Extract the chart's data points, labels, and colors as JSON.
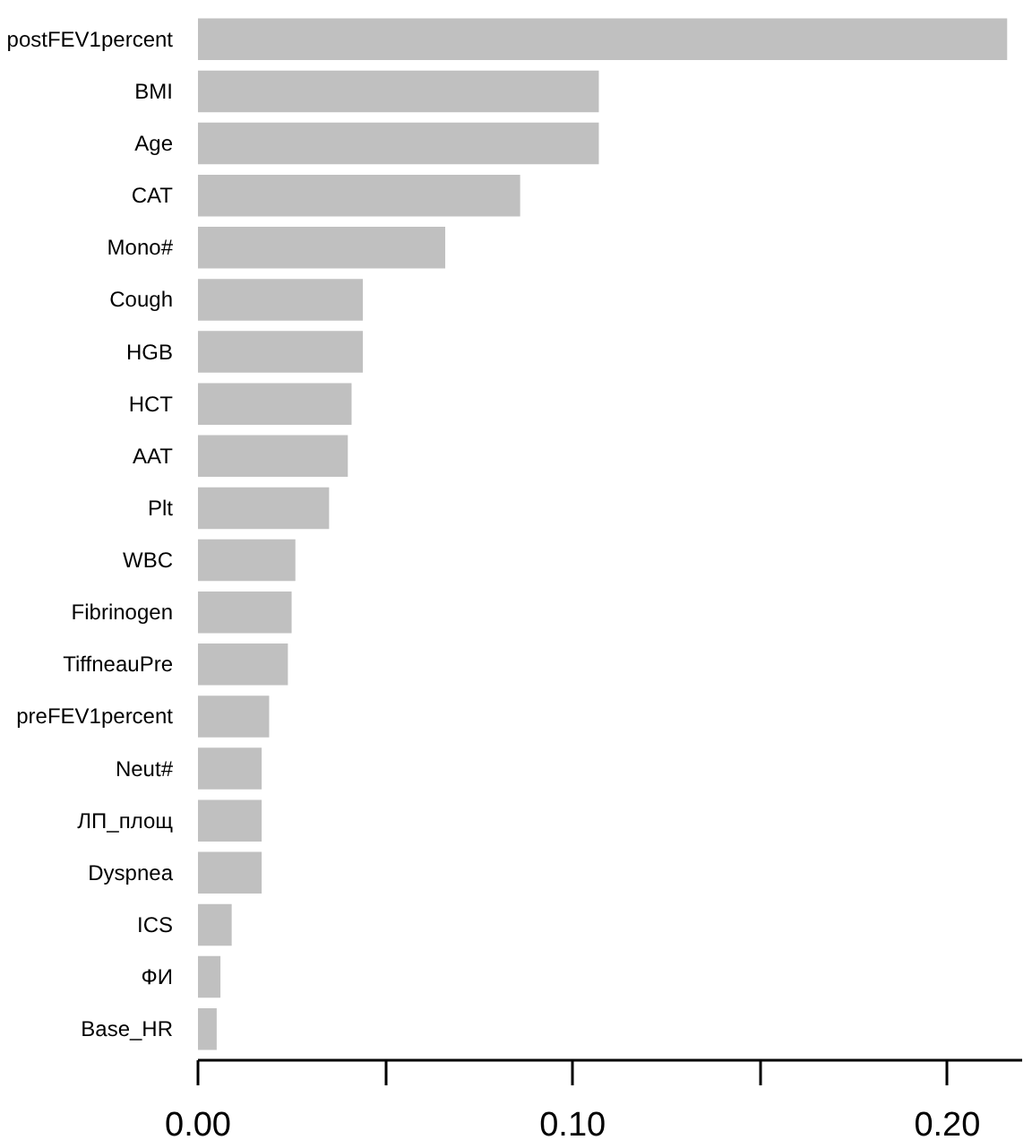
{
  "chart_data": {
    "type": "bar",
    "orientation": "horizontal",
    "categories": [
      "postFEV1percent",
      "BMI",
      "Age",
      "CAT",
      "Mono#",
      "Cough",
      "HGB",
      "HCT",
      "AAT",
      "Plt",
      "WBC",
      "Fibrinogen",
      "TiffneauPre",
      "preFEV1percent",
      "Neut#",
      "ЛП_площ",
      "Dyspnea",
      "ICS",
      "ФИ",
      "Base_HR"
    ],
    "values": [
      0.216,
      0.107,
      0.107,
      0.086,
      0.066,
      0.044,
      0.044,
      0.041,
      0.04,
      0.035,
      0.026,
      0.025,
      0.024,
      0.019,
      0.017,
      0.017,
      0.017,
      0.009,
      0.006,
      0.005
    ],
    "color": "#c0c0c0",
    "xlim": [
      0,
      0.22
    ],
    "xticks": [
      {
        "value": 0,
        "label": "0.00"
      },
      {
        "value": 0.05,
        "label": null
      },
      {
        "value": 0.1,
        "label": "0.10"
      },
      {
        "value": 0.15,
        "label": null
      },
      {
        "value": 0.2,
        "label": "0.20"
      }
    ],
    "grid": false
  }
}
